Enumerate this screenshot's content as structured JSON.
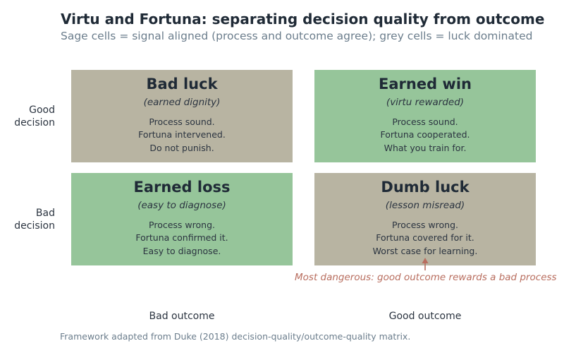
{
  "title": "Virtu and Fortuna: separating decision quality from outcome",
  "subtitle": "Sage cells = signal aligned (process and outcome agree); grey cells = luck dominated",
  "colors": {
    "sage": "#96c59a",
    "grey": "#b8b4a2",
    "annotation": "#b86d5e"
  },
  "rows": {
    "good": [
      "Good",
      "decision"
    ],
    "bad": [
      "Bad",
      "decision"
    ]
  },
  "columns": {
    "bad": "Bad outcome",
    "good": "Good outcome"
  },
  "cells": {
    "good_bad": {
      "title": "Bad luck",
      "subtitle": "(earned dignity)",
      "lines": [
        "Process sound.",
        "Fortuna intervened.",
        "Do not punish."
      ],
      "color": "#b8b4a2"
    },
    "good_good": {
      "title": "Earned win",
      "subtitle": "(virtu rewarded)",
      "lines": [
        "Process sound.",
        "Fortuna cooperated.",
        "What you train for."
      ],
      "color": "#96c59a"
    },
    "bad_bad": {
      "title": "Earned loss",
      "subtitle": "(easy to diagnose)",
      "lines": [
        "Process wrong.",
        "Fortuna confirmed it.",
        "Easy to diagnose."
      ],
      "color": "#96c59a"
    },
    "bad_good": {
      "title": "Dumb luck",
      "subtitle": "(lesson misread)",
      "lines": [
        "Process wrong.",
        "Fortuna covered for it.",
        "Worst case for learning."
      ],
      "color": "#b8b4a2"
    }
  },
  "annotation": "Most dangerous: good outcome rewards a bad process",
  "footnote": "Framework adapted from Duke (2018) decision-quality/outcome-quality matrix."
}
